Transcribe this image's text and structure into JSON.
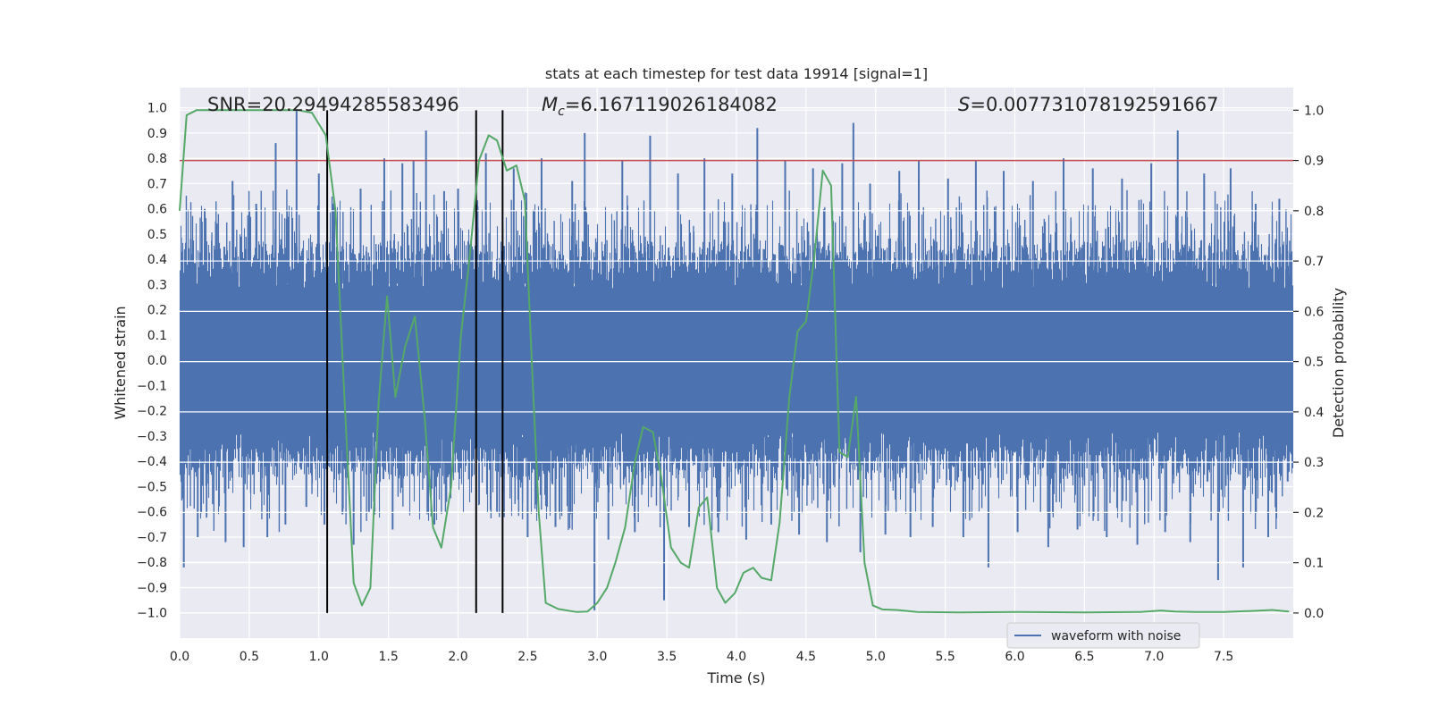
{
  "chart_data": {
    "type": "line",
    "title": "stats at each timestep for test data 19914 [signal=1]",
    "xlabel": "Time (s)",
    "ylabel_left": "Whitened strain",
    "ylabel_right": "Detection probability",
    "xlim": [
      0,
      8
    ],
    "ylim_left": [
      -1.1,
      1.08
    ],
    "ylim_right": [
      -0.05,
      1.045
    ],
    "x_ticks": [
      0.0,
      0.5,
      1.0,
      1.5,
      2.0,
      2.5,
      3.0,
      3.5,
      4.0,
      4.5,
      5.0,
      5.5,
      6.0,
      6.5,
      7.0,
      7.5
    ],
    "x_tick_labels": [
      "0.0",
      "0.5",
      "1.0",
      "1.5",
      "2.0",
      "2.5",
      "3.0",
      "3.5",
      "4.0",
      "4.5",
      "5.0",
      "5.5",
      "6.0",
      "6.5",
      "7.0",
      "7.5"
    ],
    "y_left_ticks": [
      -1.0,
      -0.9,
      -0.8,
      -0.7,
      -0.6,
      -0.5,
      -0.4,
      -0.3,
      -0.2,
      -0.1,
      0.0,
      0.1,
      0.2,
      0.3,
      0.4,
      0.5,
      0.6,
      0.7,
      0.8,
      0.9,
      1.0
    ],
    "y_left_tick_labels": [
      "−1.0",
      "−0.9",
      "−0.8",
      "−0.7",
      "−0.6",
      "−0.5",
      "−0.4",
      "−0.3",
      "−0.2",
      "−0.1",
      "0.0",
      "0.1",
      "0.2",
      "0.3",
      "0.4",
      "0.5",
      "0.6",
      "0.7",
      "0.8",
      "0.9",
      "1.0"
    ],
    "y_right_ticks": [
      0.0,
      0.1,
      0.2,
      0.3,
      0.4,
      0.5,
      0.6,
      0.7,
      0.8,
      0.9,
      1.0
    ],
    "y_right_tick_labels": [
      "0.0",
      "0.1",
      "0.2",
      "0.3",
      "0.4",
      "0.5",
      "0.6",
      "0.7",
      "0.8",
      "0.9",
      "1.0"
    ],
    "grid": true,
    "legend": {
      "location": "lower-right",
      "entries": [
        "waveform with noise"
      ]
    },
    "annotations": {
      "snr": "SNR=20.29494285583496",
      "mc_symbol": "M",
      "mc_subscript": "c",
      "mc_value": "=6.167119026184082",
      "s_symbol": "S",
      "s_value": "=0.007731078192591667"
    },
    "threshold_line": {
      "axis": "right",
      "value": 0.9,
      "color": "#c44e52"
    },
    "vertical_markers": {
      "x": [
        1.06,
        2.13,
        2.32
      ],
      "y_range_right": [
        0.0,
        1.0
      ],
      "color": "#000000"
    },
    "waveform": {
      "name": "waveform with noise",
      "color": "#4c72b0",
      "axis": "left",
      "x_range": [
        0,
        8
      ],
      "core_envelope": 0.38,
      "spikes": [
        {
          "x": 0.03,
          "y": -0.82
        },
        {
          "x": 0.08,
          "y": 0.48
        },
        {
          "x": 0.13,
          "y": -0.7
        },
        {
          "x": 0.18,
          "y": 0.6
        },
        {
          "x": 0.26,
          "y": 0.55
        },
        {
          "x": 0.33,
          "y": -0.72
        },
        {
          "x": 0.38,
          "y": 0.71
        },
        {
          "x": 0.46,
          "y": -0.74
        },
        {
          "x": 0.55,
          "y": 0.62
        },
        {
          "x": 0.63,
          "y": -0.7
        },
        {
          "x": 0.69,
          "y": 0.86
        },
        {
          "x": 0.76,
          "y": -0.65
        },
        {
          "x": 0.84,
          "y": 0.99
        },
        {
          "x": 0.91,
          "y": -0.58
        },
        {
          "x": 1.0,
          "y": 0.74
        },
        {
          "x": 1.04,
          "y": -0.65
        },
        {
          "x": 1.1,
          "y": 0.62
        },
        {
          "x": 1.17,
          "y": -0.61
        },
        {
          "x": 1.25,
          "y": -0.73
        },
        {
          "x": 1.3,
          "y": 0.68
        },
        {
          "x": 1.36,
          "y": -0.6
        },
        {
          "x": 1.47,
          "y": 0.8
        },
        {
          "x": 1.53,
          "y": -0.67
        },
        {
          "x": 1.6,
          "y": 0.78
        },
        {
          "x": 1.68,
          "y": 0.79
        },
        {
          "x": 1.77,
          "y": 0.91
        },
        {
          "x": 1.83,
          "y": -0.65
        },
        {
          "x": 1.9,
          "y": 0.67
        },
        {
          "x": 2.0,
          "y": 0.68
        },
        {
          "x": 2.1,
          "y": -0.46
        },
        {
          "x": 2.2,
          "y": 0.82
        },
        {
          "x": 2.28,
          "y": -0.6
        },
        {
          "x": 2.4,
          "y": 0.76
        },
        {
          "x": 2.5,
          "y": -0.7
        },
        {
          "x": 2.6,
          "y": 0.8
        },
        {
          "x": 2.7,
          "y": -0.66
        },
        {
          "x": 2.82,
          "y": 0.71
        },
        {
          "x": 2.91,
          "y": 0.9
        },
        {
          "x": 2.98,
          "y": -0.99
        },
        {
          "x": 3.08,
          "y": -0.71
        },
        {
          "x": 3.18,
          "y": 0.79
        },
        {
          "x": 3.27,
          "y": -0.68
        },
        {
          "x": 3.38,
          "y": 0.89
        },
        {
          "x": 3.48,
          "y": -0.95
        },
        {
          "x": 3.58,
          "y": 0.74
        },
        {
          "x": 3.66,
          "y": -0.66
        },
        {
          "x": 3.77,
          "y": 0.8
        },
        {
          "x": 3.87,
          "y": -0.68
        },
        {
          "x": 3.97,
          "y": 0.74
        },
        {
          "x": 4.07,
          "y": -0.71
        },
        {
          "x": 4.15,
          "y": 0.92
        },
        {
          "x": 4.25,
          "y": -0.65
        },
        {
          "x": 4.35,
          "y": 0.79
        },
        {
          "x": 4.45,
          "y": -0.69
        },
        {
          "x": 4.55,
          "y": 0.76
        },
        {
          "x": 4.65,
          "y": -0.72
        },
        {
          "x": 4.76,
          "y": 0.78
        },
        {
          "x": 4.84,
          "y": 0.94
        },
        {
          "x": 4.89,
          "y": -0.76
        },
        {
          "x": 4.96,
          "y": 0.7
        },
        {
          "x": 5.07,
          "y": -0.69
        },
        {
          "x": 5.17,
          "y": 0.75
        },
        {
          "x": 5.25,
          "y": -0.7
        },
        {
          "x": 5.31,
          "y": 0.79
        },
        {
          "x": 5.41,
          "y": -0.66
        },
        {
          "x": 5.52,
          "y": 0.72
        },
        {
          "x": 5.63,
          "y": -0.7
        },
        {
          "x": 5.72,
          "y": 0.79
        },
        {
          "x": 5.81,
          "y": -0.82
        },
        {
          "x": 5.92,
          "y": 0.75
        },
        {
          "x": 6.02,
          "y": -0.68
        },
        {
          "x": 6.13,
          "y": 0.71
        },
        {
          "x": 6.24,
          "y": -0.74
        },
        {
          "x": 6.35,
          "y": 0.8
        },
        {
          "x": 6.45,
          "y": -0.67
        },
        {
          "x": 6.56,
          "y": 0.76
        },
        {
          "x": 6.66,
          "y": -0.7
        },
        {
          "x": 6.77,
          "y": 0.72
        },
        {
          "x": 6.88,
          "y": -0.73
        },
        {
          "x": 6.98,
          "y": 0.78
        },
        {
          "x": 7.08,
          "y": -0.68
        },
        {
          "x": 7.17,
          "y": 0.91
        },
        {
          "x": 7.26,
          "y": -0.72
        },
        {
          "x": 7.36,
          "y": 0.74
        },
        {
          "x": 7.46,
          "y": -0.87
        },
        {
          "x": 7.55,
          "y": 0.76
        },
        {
          "x": 7.64,
          "y": -0.82
        },
        {
          "x": 7.73,
          "y": 0.62
        },
        {
          "x": 7.82,
          "y": -0.7
        },
        {
          "x": 7.9,
          "y": 0.64
        },
        {
          "x": 7.96,
          "y": -0.48
        }
      ]
    },
    "detection_probability": {
      "name": "detection probability",
      "color": "#55a868",
      "axis": "right",
      "points": [
        [
          0.0,
          0.8
        ],
        [
          0.05,
          0.99
        ],
        [
          0.12,
          1.0
        ],
        [
          0.25,
          1.0
        ],
        [
          0.5,
          1.0
        ],
        [
          0.75,
          1.0
        ],
        [
          0.85,
          1.0
        ],
        [
          0.95,
          0.995
        ],
        [
          1.05,
          0.95
        ],
        [
          1.12,
          0.8
        ],
        [
          1.18,
          0.45
        ],
        [
          1.25,
          0.06
        ],
        [
          1.31,
          0.015
        ],
        [
          1.37,
          0.05
        ],
        [
          1.43,
          0.42
        ],
        [
          1.49,
          0.63
        ],
        [
          1.55,
          0.43
        ],
        [
          1.62,
          0.53
        ],
        [
          1.69,
          0.59
        ],
        [
          1.76,
          0.39
        ],
        [
          1.82,
          0.17
        ],
        [
          1.88,
          0.13
        ],
        [
          1.95,
          0.25
        ],
        [
          2.02,
          0.55
        ],
        [
          2.08,
          0.7
        ],
        [
          2.15,
          0.9
        ],
        [
          2.22,
          0.95
        ],
        [
          2.28,
          0.94
        ],
        [
          2.35,
          0.88
        ],
        [
          2.42,
          0.89
        ],
        [
          2.48,
          0.82
        ],
        [
          2.53,
          0.5
        ],
        [
          2.58,
          0.2
        ],
        [
          2.63,
          0.02
        ],
        [
          2.72,
          0.008
        ],
        [
          2.85,
          0.002
        ],
        [
          2.93,
          0.003
        ],
        [
          3.0,
          0.02
        ],
        [
          3.07,
          0.05
        ],
        [
          3.13,
          0.1
        ],
        [
          3.2,
          0.17
        ],
        [
          3.27,
          0.3
        ],
        [
          3.33,
          0.37
        ],
        [
          3.4,
          0.36
        ],
        [
          3.46,
          0.27
        ],
        [
          3.53,
          0.13
        ],
        [
          3.6,
          0.1
        ],
        [
          3.66,
          0.09
        ],
        [
          3.73,
          0.21
        ],
        [
          3.79,
          0.23
        ],
        [
          3.86,
          0.05
        ],
        [
          3.92,
          0.02
        ],
        [
          3.99,
          0.04
        ],
        [
          4.05,
          0.08
        ],
        [
          4.12,
          0.09
        ],
        [
          4.18,
          0.07
        ],
        [
          4.25,
          0.065
        ],
        [
          4.31,
          0.18
        ],
        [
          4.38,
          0.43
        ],
        [
          4.44,
          0.56
        ],
        [
          4.5,
          0.58
        ],
        [
          4.56,
          0.71
        ],
        [
          4.62,
          0.88
        ],
        [
          4.68,
          0.85
        ],
        [
          4.74,
          0.32
        ],
        [
          4.8,
          0.31
        ],
        [
          4.86,
          0.43
        ],
        [
          4.92,
          0.1
        ],
        [
          4.98,
          0.015
        ],
        [
          5.05,
          0.007
        ],
        [
          5.15,
          0.006
        ],
        [
          5.3,
          0.002
        ],
        [
          5.6,
          0.001
        ],
        [
          6.0,
          0.002
        ],
        [
          6.5,
          0.001
        ],
        [
          6.9,
          0.002
        ],
        [
          7.05,
          0.005
        ],
        [
          7.15,
          0.003
        ],
        [
          7.3,
          0.002
        ],
        [
          7.5,
          0.002
        ],
        [
          7.7,
          0.004
        ],
        [
          7.85,
          0.006
        ],
        [
          7.97,
          0.003
        ]
      ]
    }
  }
}
